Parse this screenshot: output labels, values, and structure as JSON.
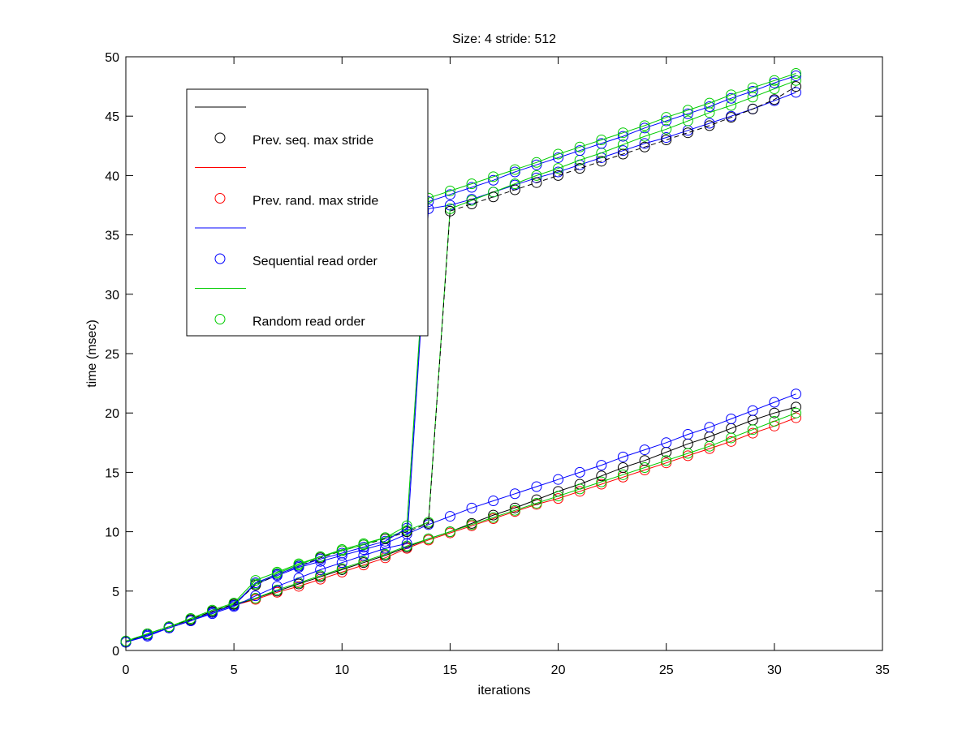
{
  "chart_data": {
    "type": "line",
    "title": "Size: 4 stride: 512",
    "xlabel": "iterations",
    "ylabel": "time (msec)",
    "xlim": [
      0,
      35
    ],
    "ylim": [
      0,
      50
    ],
    "xticks": [
      0,
      5,
      10,
      15,
      20,
      25,
      30,
      35
    ],
    "yticks": [
      0,
      5,
      10,
      15,
      20,
      25,
      30,
      35,
      40,
      45,
      50
    ],
    "grid": false,
    "legend": {
      "placement": "top-left",
      "entries": [
        {
          "label": "Prev. seq. max stride",
          "color": "#000000"
        },
        {
          "label": "Prev. rand. max stride",
          "color": "#ff0000"
        },
        {
          "label": "Sequential read order",
          "color": "#0000ff"
        },
        {
          "label": "Random read order",
          "color": "#00cc00"
        }
      ]
    },
    "x": [
      0,
      1,
      2,
      3,
      4,
      5,
      6,
      7,
      8,
      9,
      10,
      11,
      12,
      13,
      14,
      15,
      16,
      17,
      18,
      19,
      20,
      21,
      22,
      23,
      24,
      25,
      26,
      27,
      28,
      29,
      30,
      31
    ],
    "series": [
      {
        "name": "Prev. rand. max stride",
        "color": "#ff0000",
        "dashed": false,
        "values": [
          0.7,
          1.3,
          1.9,
          2.5,
          3.2,
          3.8,
          4.3,
          4.9,
          5.4,
          6.0,
          6.6,
          7.2,
          7.8,
          8.6,
          9.3,
          9.9,
          10.5,
          11.1,
          11.7,
          12.3,
          12.8,
          13.4,
          14.0,
          14.6,
          15.2,
          15.8,
          16.4,
          17.0,
          17.6,
          18.3,
          18.9,
          19.6
        ]
      },
      {
        "name": "Prev. seq. max stride",
        "color": "#000000",
        "dashed": false,
        "values": [
          0.7,
          1.3,
          1.9,
          2.5,
          3.2,
          3.8,
          4.4,
          5.0,
          5.6,
          6.2,
          6.8,
          7.4,
          8.0,
          8.7,
          9.4,
          10.0,
          10.7,
          11.4,
          12.0,
          12.7,
          13.4,
          14.0,
          14.7,
          15.4,
          16.0,
          16.7,
          17.4,
          18.0,
          18.7,
          19.4,
          20.0,
          20.5
        ]
      },
      {
        "name": "Random read order",
        "color": "#00cc00",
        "dashed": false,
        "values": [
          0.7,
          1.4,
          2.0,
          2.6,
          3.3,
          3.9,
          4.4,
          5.1,
          5.7,
          6.3,
          6.9,
          7.5,
          8.1,
          8.8,
          9.4,
          10.0,
          10.6,
          11.2,
          11.8,
          12.4,
          13.0,
          13.6,
          14.2,
          14.8,
          15.4,
          16.0,
          16.6,
          17.2,
          17.9,
          18.6,
          19.3,
          20.0
        ]
      },
      {
        "name": "Sequential read order",
        "color": "#0000ff",
        "dashed": false,
        "values": [
          0.7,
          1.3,
          1.9,
          2.5,
          3.2,
          3.8,
          5.6,
          6.3,
          7.0,
          7.5,
          8.0,
          8.5,
          9.0,
          9.8,
          10.6,
          11.3,
          12.0,
          12.6,
          13.2,
          13.8,
          14.4,
          15.0,
          15.6,
          16.3,
          16.9,
          17.5,
          18.2,
          18.8,
          19.5,
          20.2,
          20.9,
          21.6
        ]
      },
      {
        "name": "Sequential read order",
        "color": "#0000ff",
        "dashed": false,
        "values": [
          0.7,
          1.2,
          1.9,
          2.5,
          3.1,
          3.7,
          4.6,
          5.4,
          6.1,
          6.8,
          7.4,
          8.0,
          8.6,
          9.0,
          37.2,
          37.5,
          38.0,
          38.6,
          39.2,
          39.8,
          40.3,
          40.9,
          41.5,
          42.1,
          42.7,
          43.2,
          43.8,
          44.4,
          45.0,
          45.6,
          46.3,
          47.0
        ]
      },
      {
        "name": "Random read order",
        "color": "#00cc00",
        "dashed": false,
        "values": [
          0.7,
          1.4,
          2.0,
          2.6,
          3.3,
          3.9,
          5.6,
          6.5,
          7.2,
          7.9,
          8.5,
          9.0,
          9.5,
          10.1,
          10.8,
          37.2,
          37.9,
          38.6,
          39.3,
          40.0,
          40.6,
          41.3,
          41.9,
          42.6,
          43.3,
          43.9,
          44.6,
          45.3,
          45.9,
          46.6,
          47.3,
          48.0
        ]
      },
      {
        "name": "Prev. seq. max stride",
        "color": "#000000",
        "dashed": true,
        "values": [
          0.7,
          1.4,
          2.0,
          2.6,
          3.3,
          3.9,
          5.5,
          6.4,
          7.1,
          7.8,
          8.4,
          8.9,
          9.4,
          10.0,
          10.7,
          37.0,
          37.6,
          38.2,
          38.8,
          39.4,
          40.0,
          40.6,
          41.2,
          41.8,
          42.4,
          43.0,
          43.6,
          44.2,
          44.9,
          45.6,
          46.4,
          47.5
        ]
      },
      {
        "name": "Sequential read order",
        "color": "#0000ff",
        "dashed": false,
        "values": [
          0.7,
          1.3,
          1.9,
          2.5,
          3.2,
          3.8,
          5.7,
          6.4,
          7.1,
          7.7,
          8.2,
          8.7,
          9.2,
          10.3,
          37.8,
          38.4,
          39.0,
          39.6,
          40.3,
          40.9,
          41.5,
          42.1,
          42.7,
          43.3,
          44.0,
          44.6,
          45.2,
          45.8,
          46.5,
          47.1,
          47.8,
          48.4
        ]
      },
      {
        "name": "Random read order",
        "color": "#00cc00",
        "dashed": false,
        "values": [
          0.8,
          1.4,
          2.0,
          2.7,
          3.4,
          4.0,
          5.9,
          6.6,
          7.3,
          7.9,
          8.4,
          8.9,
          9.5,
          10.5,
          38.1,
          38.7,
          39.3,
          39.9,
          40.5,
          41.1,
          41.8,
          42.4,
          43.0,
          43.6,
          44.2,
          44.9,
          45.5,
          46.1,
          46.8,
          47.4,
          48.0,
          48.6
        ]
      }
    ]
  }
}
